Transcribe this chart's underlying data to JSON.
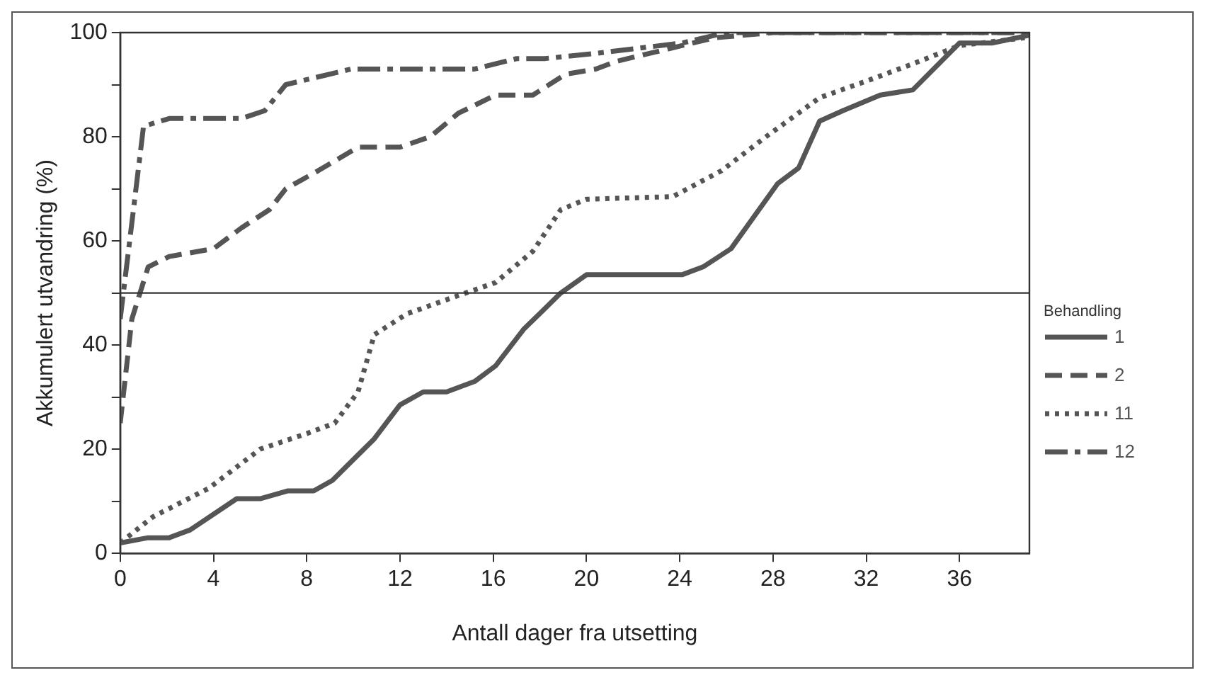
{
  "chart_data": {
    "type": "line",
    "xlabel": "Antall dager fra utsetting",
    "ylabel": "Akkumulert utvandring (%)",
    "legend_title": "Behandling",
    "xlim": [
      0,
      39
    ],
    "xticks": [
      0,
      4,
      8,
      12,
      16,
      20,
      24,
      28,
      32,
      36
    ],
    "ylim": [
      0,
      100
    ],
    "yticks": [
      0,
      {
        "value": 10,
        "label": null
      },
      20,
      {
        "value": 30,
        "label": null
      },
      40,
      {
        "value": 50,
        "label": null
      },
      60,
      {
        "value": 70,
        "label": null
      },
      80,
      {
        "value": 90,
        "label": null
      },
      100
    ],
    "grid": false,
    "legend": "right",
    "marker": "none",
    "ref_lines": [
      {
        "axis": "y",
        "value": 50,
        "color": "#333333"
      }
    ],
    "series": [
      {
        "name": "1",
        "color": "#555555",
        "line_style": "solid",
        "x": [
          0,
          1.2,
          2.1,
          3,
          5,
          6,
          7.2,
          8.3,
          9.1,
          10.9,
          12,
          13,
          14,
          15.2,
          16.1,
          17.3,
          18.9,
          20,
          24.1,
          25,
          26.2,
          28.2,
          29.1,
          30,
          31,
          32.6,
          34,
          36,
          37.4,
          39
        ],
        "values": [
          2,
          3,
          3,
          4.5,
          10.5,
          10.5,
          12,
          12,
          14,
          22,
          28.5,
          31,
          31,
          33,
          36,
          43,
          50,
          53.5,
          53.5,
          55,
          58.5,
          71,
          74,
          83,
          85,
          88,
          89,
          98,
          98,
          99.5
        ]
      },
      {
        "name": "2",
        "color": "#555555",
        "line_style": "dashed",
        "x": [
          0,
          0.5,
          1.2,
          2.1,
          4,
          5.2,
          6.4,
          7.1,
          8.5,
          10.2,
          12,
          13.3,
          14.5,
          16.1,
          17.7,
          19.1,
          20.4,
          21.3,
          22.7,
          25.5,
          28,
          39
        ],
        "values": [
          25,
          45,
          55,
          57,
          58.5,
          62.5,
          66,
          70,
          73.5,
          78,
          78,
          80,
          84.5,
          88,
          88,
          92,
          93,
          94.5,
          96,
          99,
          100,
          100
        ]
      },
      {
        "name": "11",
        "color": "#555555",
        "line_style": "dotted",
        "x": [
          0,
          1.4,
          3.8,
          6,
          8,
          9.2,
          10.2,
          10.9,
          12.3,
          14.5,
          16.1,
          17.7,
          18.9,
          20,
          23.7,
          25.8,
          27.7,
          30,
          32.2,
          34,
          36,
          38.8
        ],
        "values": [
          2,
          7,
          12.5,
          20,
          23,
          25,
          31,
          42,
          46,
          49.5,
          52,
          58,
          66,
          68,
          68.5,
          73.5,
          80,
          87.5,
          91,
          94,
          97.5,
          99
        ]
      },
      {
        "name": "12",
        "color": "#555555",
        "line_style": "dashdot",
        "x": [
          0,
          1,
          2.1,
          5.2,
          6.2,
          7.1,
          9.9,
          15.2,
          17,
          18.2,
          20.4,
          21.3,
          24.1,
          26,
          39
        ],
        "values": [
          45,
          82,
          83.5,
          83.5,
          85,
          90,
          93,
          93,
          95,
          95,
          96,
          96.5,
          98,
          100,
          100
        ]
      }
    ]
  }
}
